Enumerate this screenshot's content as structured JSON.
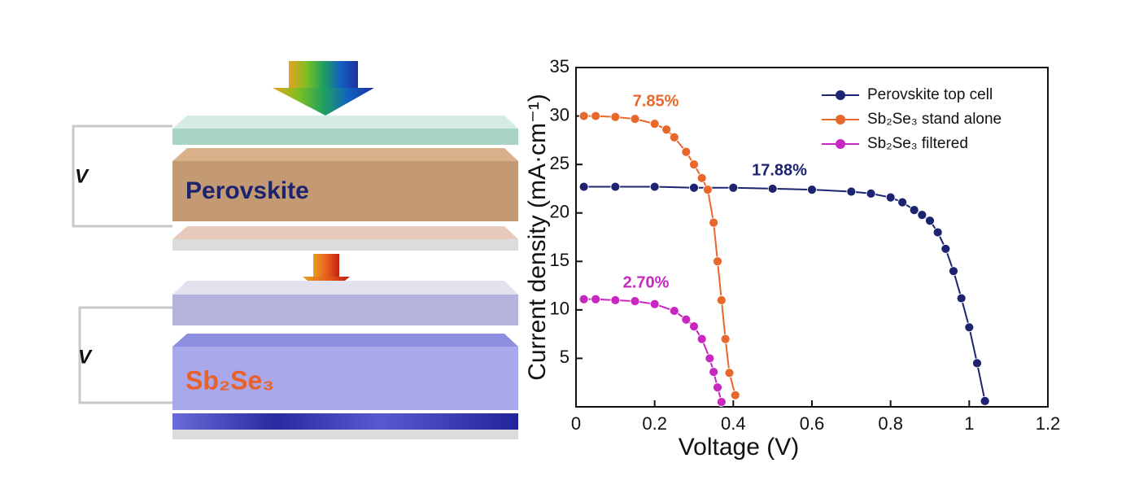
{
  "diagram": {
    "voltage_labels": [
      "V",
      "V"
    ],
    "layers": [
      "Perovskite",
      "Sb₂Se₃"
    ]
  },
  "chart_data": {
    "type": "line",
    "x_label": "Voltage (V)",
    "y_label": "Current density (mA·cm⁻¹)",
    "xlim": [
      0,
      1.2
    ],
    "xticks": [
      0,
      0.2,
      0.4,
      0.6,
      0.8,
      1.0,
      1.2
    ],
    "ylim": [
      0,
      35
    ],
    "yticks": [
      5,
      10,
      15,
      20,
      25,
      30,
      35
    ],
    "legend": "top-right",
    "series": [
      {
        "name": "Perovskite top cell",
        "color": "#1c2470",
        "annotation": "17.88%",
        "x": [
          0.02,
          0.1,
          0.2,
          0.3,
          0.4,
          0.5,
          0.6,
          0.7,
          0.75,
          0.8,
          0.83,
          0.86,
          0.88,
          0.9,
          0.92,
          0.94,
          0.96,
          0.98,
          1.0,
          1.02,
          1.04
        ],
        "values": [
          22.7,
          22.7,
          22.7,
          22.6,
          22.6,
          22.5,
          22.4,
          22.2,
          22.0,
          21.6,
          21.1,
          20.3,
          19.8,
          19.2,
          18.0,
          16.3,
          14.0,
          11.2,
          8.2,
          4.5,
          0.6
        ]
      },
      {
        "name": "Sb₂Se₃ stand alone",
        "color": "#e8672a",
        "annotation": "7.85%",
        "x": [
          0.02,
          0.05,
          0.1,
          0.15,
          0.2,
          0.23,
          0.25,
          0.28,
          0.3,
          0.32,
          0.335,
          0.35,
          0.36,
          0.37,
          0.38,
          0.39,
          0.405
        ],
        "values": [
          30.0,
          30.0,
          29.9,
          29.7,
          29.2,
          28.6,
          27.8,
          26.3,
          25.0,
          23.6,
          22.4,
          19.0,
          15.0,
          11.0,
          7.0,
          3.5,
          1.2
        ]
      },
      {
        "name": "Sb₂Se₃ filtered",
        "color": "#c828c0",
        "annotation": "2.70%",
        "x": [
          0.02,
          0.05,
          0.1,
          0.15,
          0.2,
          0.25,
          0.28,
          0.3,
          0.32,
          0.34,
          0.35,
          0.36,
          0.37
        ],
        "values": [
          11.1,
          11.1,
          11.0,
          10.9,
          10.6,
          9.9,
          9.0,
          8.3,
          7.0,
          5.0,
          3.6,
          2.0,
          0.5
        ]
      }
    ]
  }
}
